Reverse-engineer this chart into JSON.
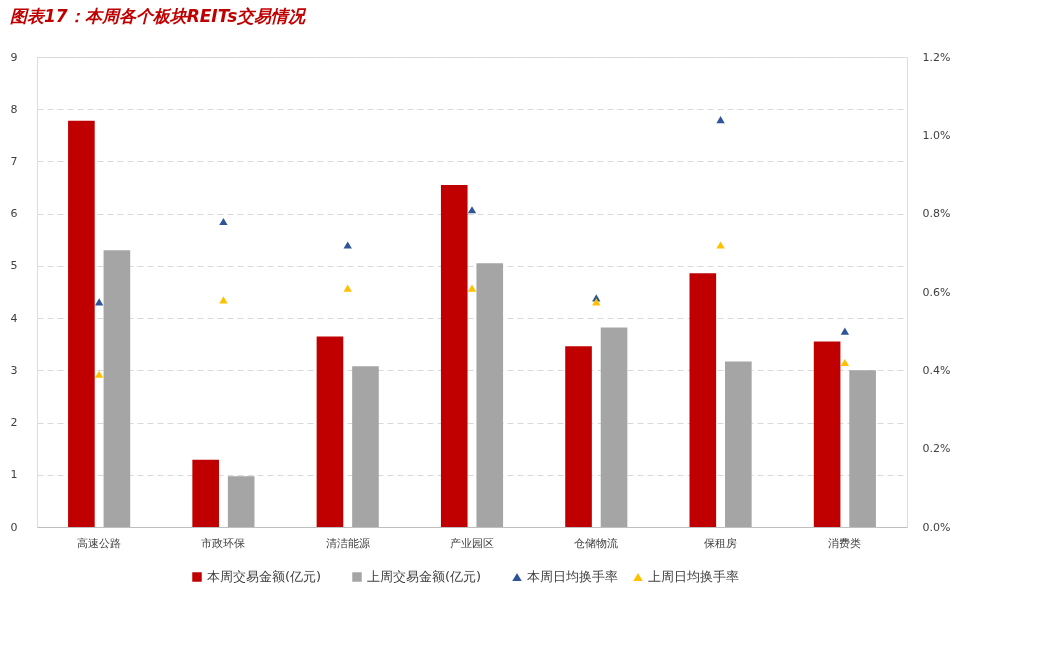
{
  "chart_data": {
    "type": "bar",
    "title": "图表17：本周各个板块REITs交易情况",
    "categories": [
      "高速公路",
      "市政环保",
      "清洁能源",
      "产业园区",
      "仓储物流",
      "保租房",
      "消费类"
    ],
    "series": [
      {
        "name": "本周交易金额(亿元)",
        "color": "#c00000",
        "values": [
          7.78,
          1.29,
          3.65,
          6.55,
          3.46,
          4.86,
          3.55
        ]
      },
      {
        "name": "上周交易金额(亿元)",
        "color": "#a5a5a5",
        "values": [
          5.3,
          0.97,
          3.08,
          5.05,
          3.82,
          3.17,
          3.0
        ]
      },
      {
        "name": "本周日均换手率",
        "type": "scatter",
        "axis": "y2",
        "marker": "triangle",
        "color": "#2f5597",
        "values": [
          0.575,
          0.78,
          0.72,
          0.81,
          0.585,
          1.04,
          0.5
        ]
      },
      {
        "name": "上周日均换手率",
        "type": "scatter",
        "axis": "y2",
        "marker": "triangle",
        "color": "#ffc000",
        "values": [
          0.39,
          0.58,
          0.61,
          0.61,
          0.575,
          0.72,
          0.42
        ]
      }
    ],
    "ylim": [
      0,
      9
    ],
    "yticks": [
      0,
      1,
      2,
      3,
      4,
      5,
      6,
      7,
      8,
      9
    ],
    "y2lim": [
      0,
      1.2
    ],
    "y2ticks": [
      {
        "value": 0,
        "label": "0.0%"
      },
      {
        "value": 0.2,
        "label": "0.2%"
      },
      {
        "value": 0.4,
        "label": "0.4%"
      },
      {
        "value": 0.6,
        "label": "0.6%"
      },
      {
        "value": 0.8,
        "label": "0.8%"
      },
      {
        "value": 1.0,
        "label": "1.0%"
      },
      {
        "value": 1.2,
        "label": "1.2%"
      }
    ],
    "grid": "y",
    "legend": "bottom"
  }
}
